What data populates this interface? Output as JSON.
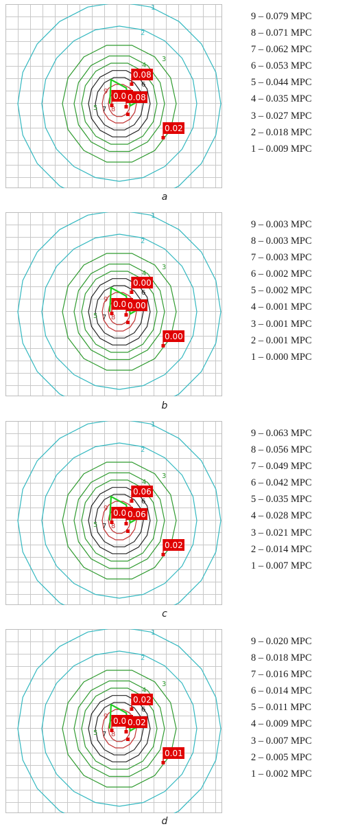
{
  "panels": [
    {
      "caption": "a",
      "legend": [
        "9 – 0.079 MPC",
        "8 – 0.071 MPC",
        "7 – 0.062 MPC",
        "6 – 0.053 MPC",
        "5 – 0.044 MPC",
        "4 – 0.035 MPC",
        "3 – 0.027 MPC",
        "2 – 0.018 MPC",
        "1 – 0.009 MPC"
      ],
      "markers": [
        "0.08",
        "0.08",
        "0.08",
        "0.02"
      ]
    },
    {
      "caption": "b",
      "legend": [
        "9 – 0.003 MPC",
        "8 – 0.003 MPC",
        "7 – 0.003 MPC",
        "6 – 0.002 MPC",
        "5 – 0.002 MPC",
        "4 – 0.001 MPC",
        "3 – 0.001 MPC",
        "2 – 0.001 MPC",
        "1 – 0.000 MPC"
      ],
      "markers": [
        "0.00",
        "0.00",
        "0.00",
        "0.00"
      ]
    },
    {
      "caption": "c",
      "legend": [
        "9 – 0.063 MPC",
        "8 – 0.056 MPC",
        "7 – 0.049 MPC",
        "6 – 0.042 MPC",
        "5 – 0.035 MPC",
        "4 – 0.028 MPC",
        "3 – 0.021 MPC",
        "2 – 0.014 MPC",
        "1 – 0.007 MPC"
      ],
      "markers": [
        "0.06",
        "0.06",
        "0.06",
        "0.02"
      ]
    },
    {
      "caption": "d",
      "legend": [
        "9 – 0.020 MPC",
        "8 – 0.018 MPC",
        "7 – 0.016 MPC",
        "6 – 0.014 MPC",
        "5 – 0.011 MPC",
        "4 – 0.009 MPC",
        "3 – 0.007 MPC",
        "2 – 0.005 MPC",
        "1 – 0.002 MPC"
      ],
      "markers": [
        "0.02",
        "0.02",
        "0.02",
        "0.01"
      ]
    }
  ],
  "contour_labels": [
    "1",
    "2",
    "3",
    "4",
    "5",
    "6",
    "7",
    "8",
    "9"
  ],
  "colors": {
    "grid": "#c8c8c8",
    "contour_outer": "#33b8c0",
    "contour_mid": "#2e9a2e",
    "contour_inner": "#222222",
    "contour_core": "#c03030",
    "marker": "#e00000",
    "source_line": "#22cc22"
  }
}
